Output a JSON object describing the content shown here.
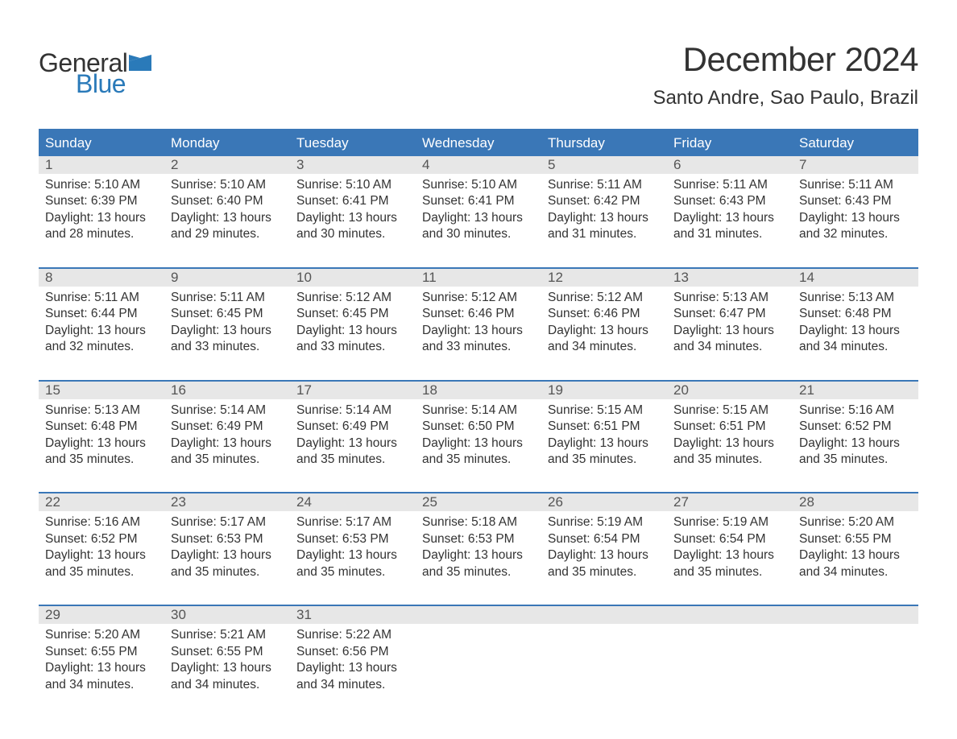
{
  "logo": {
    "text1": "General",
    "text2": "Blue",
    "flag_color": "#2a7ab9"
  },
  "title": "December 2024",
  "location": "Santo Andre, Sao Paulo, Brazil",
  "colors": {
    "header_bg": "#3a77b7",
    "header_text": "#ffffff",
    "daynum_bg": "#e7e7e7",
    "daynum_text": "#555555",
    "body_text": "#333333",
    "rule": "#3a77b7",
    "logo_blue": "#2a7ab9"
  },
  "typography": {
    "title_fontsize": 42,
    "location_fontsize": 24,
    "weekday_fontsize": 17,
    "daynum_fontsize": 17,
    "body_fontsize": 15.5
  },
  "weekdays": [
    "Sunday",
    "Monday",
    "Tuesday",
    "Wednesday",
    "Thursday",
    "Friday",
    "Saturday"
  ],
  "days": [
    {
      "n": 1,
      "sunrise": "5:10 AM",
      "sunset": "6:39 PM",
      "daylight": "13 hours and 28 minutes."
    },
    {
      "n": 2,
      "sunrise": "5:10 AM",
      "sunset": "6:40 PM",
      "daylight": "13 hours and 29 minutes."
    },
    {
      "n": 3,
      "sunrise": "5:10 AM",
      "sunset": "6:41 PM",
      "daylight": "13 hours and 30 minutes."
    },
    {
      "n": 4,
      "sunrise": "5:10 AM",
      "sunset": "6:41 PM",
      "daylight": "13 hours and 30 minutes."
    },
    {
      "n": 5,
      "sunrise": "5:11 AM",
      "sunset": "6:42 PM",
      "daylight": "13 hours and 31 minutes."
    },
    {
      "n": 6,
      "sunrise": "5:11 AM",
      "sunset": "6:43 PM",
      "daylight": "13 hours and 31 minutes."
    },
    {
      "n": 7,
      "sunrise": "5:11 AM",
      "sunset": "6:43 PM",
      "daylight": "13 hours and 32 minutes."
    },
    {
      "n": 8,
      "sunrise": "5:11 AM",
      "sunset": "6:44 PM",
      "daylight": "13 hours and 32 minutes."
    },
    {
      "n": 9,
      "sunrise": "5:11 AM",
      "sunset": "6:45 PM",
      "daylight": "13 hours and 33 minutes."
    },
    {
      "n": 10,
      "sunrise": "5:12 AM",
      "sunset": "6:45 PM",
      "daylight": "13 hours and 33 minutes."
    },
    {
      "n": 11,
      "sunrise": "5:12 AM",
      "sunset": "6:46 PM",
      "daylight": "13 hours and 33 minutes."
    },
    {
      "n": 12,
      "sunrise": "5:12 AM",
      "sunset": "6:46 PM",
      "daylight": "13 hours and 34 minutes."
    },
    {
      "n": 13,
      "sunrise": "5:13 AM",
      "sunset": "6:47 PM",
      "daylight": "13 hours and 34 minutes."
    },
    {
      "n": 14,
      "sunrise": "5:13 AM",
      "sunset": "6:48 PM",
      "daylight": "13 hours and 34 minutes."
    },
    {
      "n": 15,
      "sunrise": "5:13 AM",
      "sunset": "6:48 PM",
      "daylight": "13 hours and 35 minutes."
    },
    {
      "n": 16,
      "sunrise": "5:14 AM",
      "sunset": "6:49 PM",
      "daylight": "13 hours and 35 minutes."
    },
    {
      "n": 17,
      "sunrise": "5:14 AM",
      "sunset": "6:49 PM",
      "daylight": "13 hours and 35 minutes."
    },
    {
      "n": 18,
      "sunrise": "5:14 AM",
      "sunset": "6:50 PM",
      "daylight": "13 hours and 35 minutes."
    },
    {
      "n": 19,
      "sunrise": "5:15 AM",
      "sunset": "6:51 PM",
      "daylight": "13 hours and 35 minutes."
    },
    {
      "n": 20,
      "sunrise": "5:15 AM",
      "sunset": "6:51 PM",
      "daylight": "13 hours and 35 minutes."
    },
    {
      "n": 21,
      "sunrise": "5:16 AM",
      "sunset": "6:52 PM",
      "daylight": "13 hours and 35 minutes."
    },
    {
      "n": 22,
      "sunrise": "5:16 AM",
      "sunset": "6:52 PM",
      "daylight": "13 hours and 35 minutes."
    },
    {
      "n": 23,
      "sunrise": "5:17 AM",
      "sunset": "6:53 PM",
      "daylight": "13 hours and 35 minutes."
    },
    {
      "n": 24,
      "sunrise": "5:17 AM",
      "sunset": "6:53 PM",
      "daylight": "13 hours and 35 minutes."
    },
    {
      "n": 25,
      "sunrise": "5:18 AM",
      "sunset": "6:53 PM",
      "daylight": "13 hours and 35 minutes."
    },
    {
      "n": 26,
      "sunrise": "5:19 AM",
      "sunset": "6:54 PM",
      "daylight": "13 hours and 35 minutes."
    },
    {
      "n": 27,
      "sunrise": "5:19 AM",
      "sunset": "6:54 PM",
      "daylight": "13 hours and 35 minutes."
    },
    {
      "n": 28,
      "sunrise": "5:20 AM",
      "sunset": "6:55 PM",
      "daylight": "13 hours and 34 minutes."
    },
    {
      "n": 29,
      "sunrise": "5:20 AM",
      "sunset": "6:55 PM",
      "daylight": "13 hours and 34 minutes."
    },
    {
      "n": 30,
      "sunrise": "5:21 AM",
      "sunset": "6:55 PM",
      "daylight": "13 hours and 34 minutes."
    },
    {
      "n": 31,
      "sunrise": "5:22 AM",
      "sunset": "6:56 PM",
      "daylight": "13 hours and 34 minutes."
    }
  ],
  "labels": {
    "sunrise": "Sunrise: ",
    "sunset": "Sunset: ",
    "daylight": "Daylight: "
  },
  "layout": {
    "columns": 7,
    "rows": 5,
    "start_weekday_index": 0
  }
}
